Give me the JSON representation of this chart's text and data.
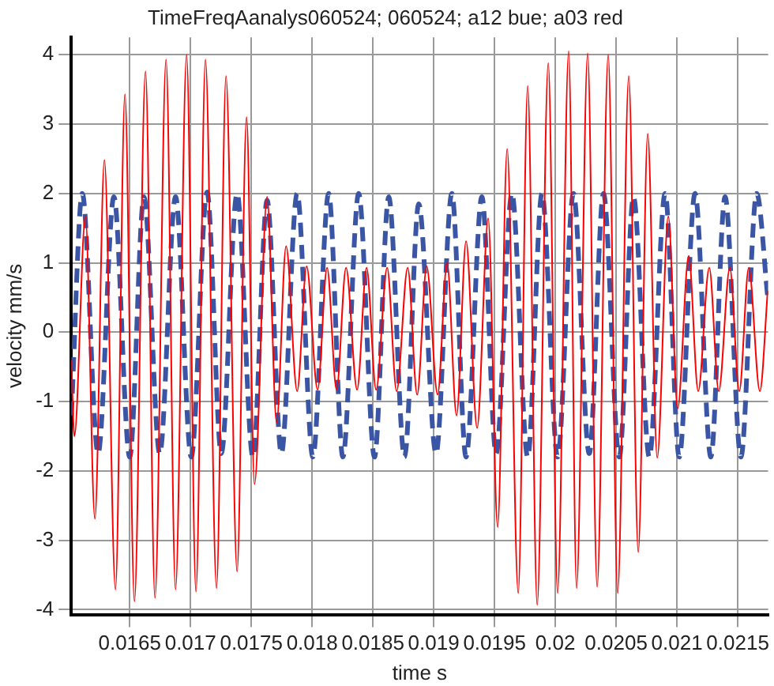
{
  "chart_data": {
    "type": "line",
    "title": "TimeFreqAanalys060524; 060524; a12 bue; a03 red",
    "xlabel": "time s",
    "ylabel": "velocity mm/s",
    "xlim": [
      0.01602,
      0.02175
    ],
    "xticks": [
      0.0165,
      0.017,
      0.0175,
      0.018,
      0.0185,
      0.019,
      0.0195,
      0.02,
      0.0205,
      0.021,
      0.0215
    ],
    "ylim": [
      -4.07,
      4.25
    ],
    "yticks": [
      -4,
      -3,
      -2,
      -1,
      0,
      1,
      2,
      3,
      4
    ],
    "grid": true,
    "legend": false,
    "marker": "none",
    "series": [
      {
        "color": "#3a55a4",
        "line_style": "dashed",
        "x": [
          0.01602,
          0.01611,
          0.01624,
          0.01637,
          0.0165,
          0.016617,
          0.016747,
          0.016877,
          0.017006,
          0.017136,
          0.017253,
          0.017383,
          0.017513,
          0.01763,
          0.017747,
          0.017877,
          0.018006,
          0.018136,
          0.018253,
          0.018383,
          0.018513,
          0.01863,
          0.01876,
          0.018877,
          0.019019,
          0.019149,
          0.019266,
          0.019396,
          0.019513,
          0.019643,
          0.019773,
          0.01989,
          0.020019,
          0.020149,
          0.020279,
          0.020396,
          0.020526,
          0.020643,
          0.020773,
          0.020903,
          0.021019,
          0.021149,
          0.021279,
          0.021396,
          0.021526,
          0.021656,
          0.021747
        ],
        "values": [
          -1.2,
          2.0,
          -1.75,
          1.95,
          -1.8,
          1.95,
          -1.75,
          1.95,
          -1.8,
          2.02,
          -1.75,
          2.0,
          -1.8,
          1.9,
          -1.75,
          2.0,
          -1.8,
          2.0,
          -1.8,
          2.0,
          -1.8,
          1.95,
          -1.8,
          1.85,
          -1.75,
          2.0,
          -1.8,
          1.95,
          -1.75,
          2.0,
          -1.8,
          2.0,
          -1.8,
          2.0,
          -1.75,
          2.0,
          -1.8,
          1.95,
          -1.8,
          2.0,
          -1.8,
          2.0,
          -1.8,
          1.95,
          -1.8,
          2.0,
          0.5
        ]
      },
      {
        "color": "#ff0000",
        "line_style": "solid",
        "x": [
          0.01602,
          0.016045,
          0.016136,
          0.016214,
          0.016292,
          0.016383,
          0.016461,
          0.016539,
          0.01663,
          0.016708,
          0.016799,
          0.016877,
          0.016968,
          0.017045,
          0.017123,
          0.017214,
          0.017292,
          0.017383,
          0.017461,
          0.017526,
          0.01763,
          0.017708,
          0.017786,
          0.017877,
          0.017955,
          0.018045,
          0.018123,
          0.018201,
          0.018279,
          0.01837,
          0.018448,
          0.018526,
          0.018617,
          0.018695,
          0.018786,
          0.018864,
          0.018942,
          0.019032,
          0.01911,
          0.019188,
          0.019266,
          0.019357,
          0.019448,
          0.019526,
          0.019604,
          0.019695,
          0.019773,
          0.019851,
          0.019942,
          0.020019,
          0.02011,
          0.020175,
          0.020266,
          0.020344,
          0.020435,
          0.020513,
          0.020604,
          0.020682,
          0.02076,
          0.020838,
          0.020929,
          0.021006,
          0.021097,
          0.021175,
          0.021266,
          0.021344,
          0.021435,
          0.021513,
          0.021591,
          0.021682,
          0.021747
        ],
        "values": [
          -0.4,
          -1.5,
          1.67,
          -2.69,
          2.48,
          -3.71,
          3.43,
          -3.88,
          3.76,
          -3.83,
          3.93,
          -3.71,
          4.0,
          -3.74,
          3.93,
          -3.69,
          3.69,
          -3.45,
          3.1,
          -2.19,
          1.95,
          -1.3,
          1.24,
          -0.85,
          0.95,
          -0.83,
          0.93,
          -0.83,
          0.93,
          -0.83,
          0.93,
          -0.83,
          0.93,
          -0.85,
          0.93,
          -0.9,
          0.95,
          -0.9,
          1.0,
          -1.2,
          1.31,
          -1.38,
          1.64,
          -2.81,
          2.64,
          -3.76,
          3.55,
          -3.93,
          3.88,
          -3.76,
          4.05,
          -3.69,
          4.02,
          -3.67,
          4.0,
          -3.76,
          3.69,
          -3.17,
          2.86,
          -1.81,
          1.67,
          -1.1,
          1.1,
          -0.85,
          0.93,
          -0.85,
          0.93,
          -0.85,
          0.93,
          -0.85,
          0.6
        ]
      }
    ]
  }
}
